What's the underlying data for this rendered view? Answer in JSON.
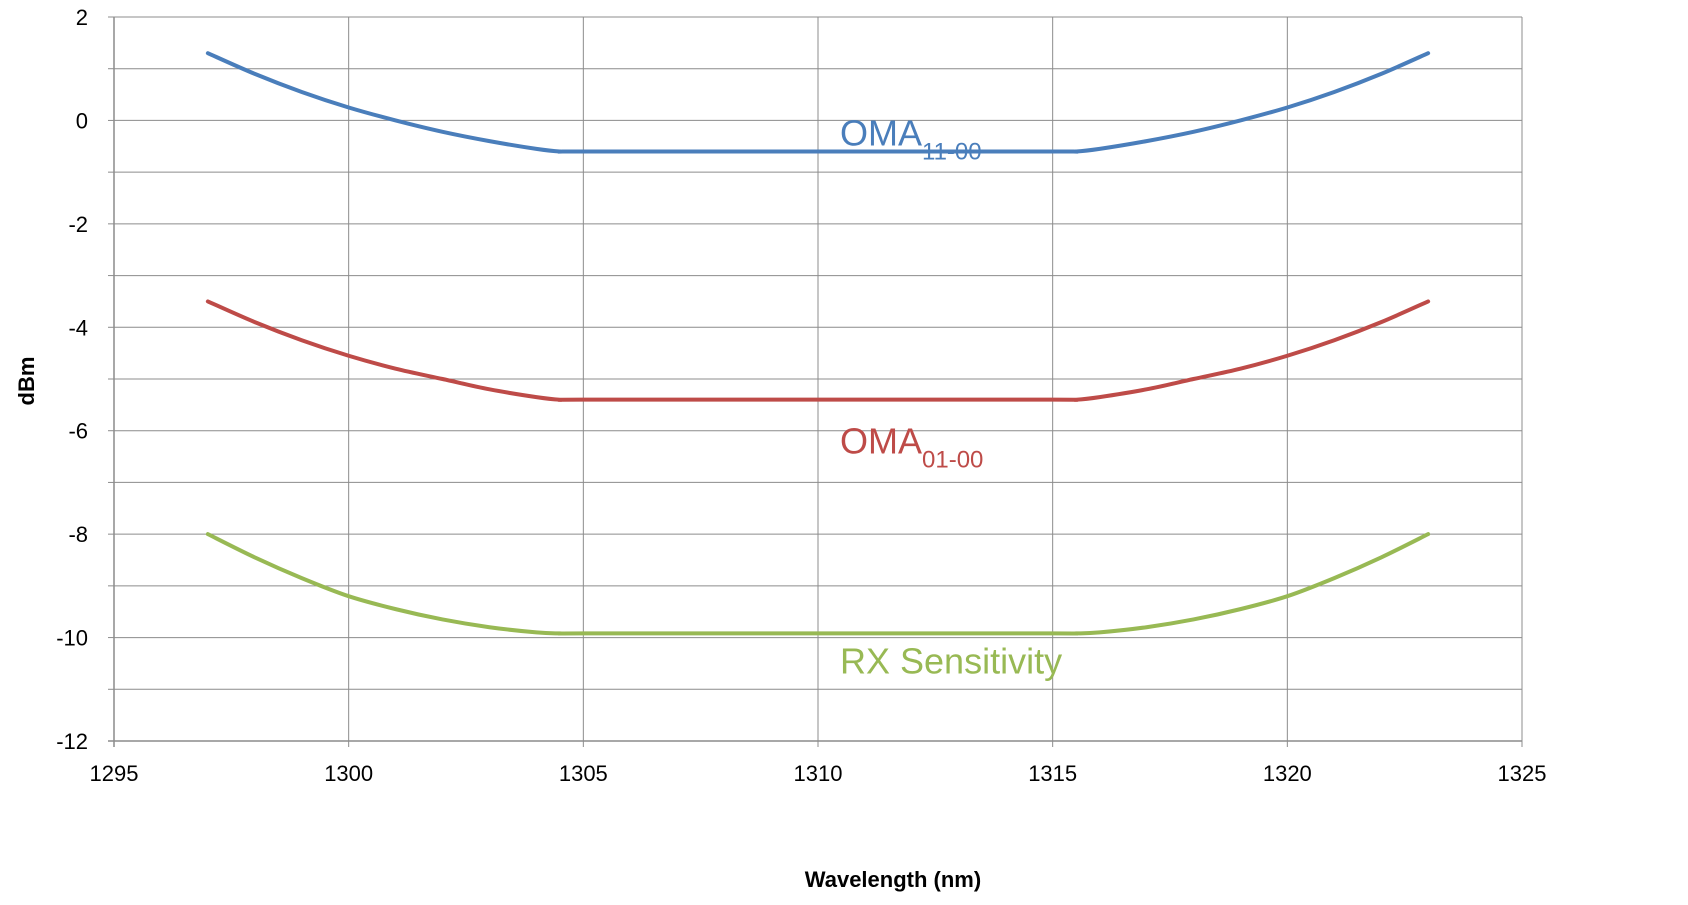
{
  "chart_data": {
    "type": "line",
    "title": "",
    "xlabel": "Wavelength (nm)",
    "ylabel": "dBm",
    "xlim": [
      1295,
      1325
    ],
    "ylim": [
      -12,
      2
    ],
    "x_ticks": [
      1295,
      1300,
      1305,
      1310,
      1315,
      1320,
      1325
    ],
    "y_ticks": [
      -12,
      -10,
      -8,
      -6,
      -4,
      -2,
      0,
      2
    ],
    "x_tick_labels": [
      "1295",
      "1300",
      "1305",
      "1310",
      "1315",
      "1320",
      "1325"
    ],
    "y_tick_labels": [
      "-12",
      "-10",
      "-8",
      "-6",
      "-4",
      "-2",
      "0",
      "2"
    ],
    "grid": true,
    "legend": "none",
    "series": [
      {
        "label_main": "OMA",
        "label_sub": "11-00",
        "color": "#4a7ebb",
        "x": [
          1297,
          1298,
          1299,
          1300,
          1301,
          1302,
          1303,
          1304,
          1304.5,
          1305,
          1310,
          1315,
          1315.5,
          1316,
          1317,
          1318,
          1319,
          1320,
          1321,
          1322,
          1323
        ],
        "y": [
          1.3,
          0.9,
          0.55,
          0.25,
          0.0,
          -0.22,
          -0.4,
          -0.55,
          -0.6,
          -0.6,
          -0.6,
          -0.6,
          -0.6,
          -0.55,
          -0.4,
          -0.22,
          0.0,
          0.25,
          0.55,
          0.9,
          1.3
        ]
      },
      {
        "label_main": "OMA",
        "label_sub": "01-00",
        "color": "#be4b48",
        "x": [
          1297,
          1298,
          1299,
          1300,
          1301,
          1302,
          1303,
          1304,
          1304.5,
          1305,
          1310,
          1315,
          1315.5,
          1316,
          1317,
          1318,
          1319,
          1320,
          1321,
          1322,
          1323
        ],
        "y": [
          -3.5,
          -3.9,
          -4.25,
          -4.55,
          -4.8,
          -5.0,
          -5.2,
          -5.35,
          -5.4,
          -5.4,
          -5.4,
          -5.4,
          -5.4,
          -5.35,
          -5.2,
          -5.0,
          -4.8,
          -4.55,
          -4.25,
          -3.9,
          -3.5
        ],
        "label_pos": "below"
      },
      {
        "label_main": "RX Sensitivity",
        "label_sub": "",
        "color": "#98b954",
        "x": [
          1297,
          1298,
          1299,
          1300,
          1301,
          1302,
          1303,
          1304,
          1304.5,
          1305,
          1310,
          1315,
          1315.5,
          1316,
          1317,
          1318,
          1319,
          1320,
          1321,
          1322,
          1323
        ],
        "y": [
          -8.0,
          -8.45,
          -8.85,
          -9.2,
          -9.45,
          -9.65,
          -9.8,
          -9.9,
          -9.92,
          -9.92,
          -9.92,
          -9.92,
          -9.92,
          -9.9,
          -9.8,
          -9.65,
          -9.45,
          -9.2,
          -8.85,
          -8.45,
          -8.0
        ],
        "label_pos": "below"
      }
    ]
  }
}
